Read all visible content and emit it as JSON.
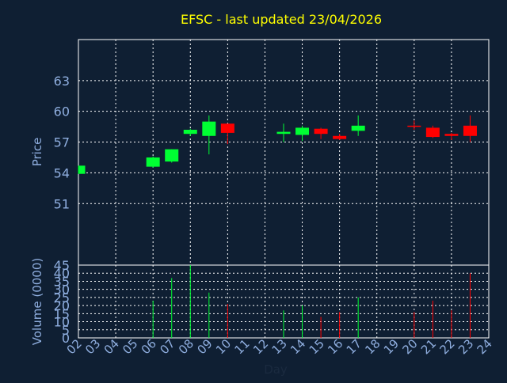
{
  "chart_data": {
    "type": "candlestick",
    "title": "EFSC - last updated 23/04/2026",
    "ylabel": "Price",
    "volume_label": "Volume (0000)",
    "xlabel": "Day",
    "ylim": [
      45,
      67
    ],
    "y_ticks": [
      45,
      51,
      54,
      57,
      60,
      63
    ],
    "volume_ylim": [
      0,
      45
    ],
    "volume_ticks": [
      0,
      5,
      10,
      15,
      20,
      25,
      30,
      35,
      40
    ],
    "x_ticks": [
      "02",
      "03",
      "04",
      "05",
      "06",
      "07",
      "08",
      "09",
      "10",
      "11",
      "12",
      "13",
      "14",
      "15",
      "16",
      "17",
      "18",
      "19",
      "20",
      "21",
      "22",
      "23",
      "24"
    ],
    "grid": true,
    "colors": {
      "background": "#0f1f33",
      "up": "#00ff33",
      "down": "#ff0000",
      "title": "#ffff00",
      "axis_text": "#8faedf",
      "grid": "#ffffff"
    },
    "candles": [
      {
        "day": "02",
        "open": 53.9,
        "close": 54.7,
        "high": 54.7,
        "low": 53.9,
        "volume": 0
      },
      {
        "day": "06",
        "open": 54.6,
        "close": 55.5,
        "high": 55.6,
        "low": 54.5,
        "volume": 23
      },
      {
        "day": "07",
        "open": 55.1,
        "close": 56.3,
        "high": 56.3,
        "low": 55.0,
        "volume": 37
      },
      {
        "day": "08",
        "open": 57.8,
        "close": 58.2,
        "high": 58.3,
        "low": 57.6,
        "volume": 45
      },
      {
        "day": "09",
        "open": 57.6,
        "close": 59.0,
        "high": 59.6,
        "low": 55.8,
        "volume": 28
      },
      {
        "day": "10",
        "open": 58.8,
        "close": 57.9,
        "high": 58.8,
        "low": 56.8,
        "volume": 21
      },
      {
        "day": "13",
        "open": 57.8,
        "close": 58.0,
        "high": 58.8,
        "low": 57.0,
        "volume": 17
      },
      {
        "day": "14",
        "open": 57.7,
        "close": 58.4,
        "high": 58.6,
        "low": 57.1,
        "volume": 20
      },
      {
        "day": "15",
        "open": 58.3,
        "close": 57.8,
        "high": 58.4,
        "low": 57.3,
        "volume": 13
      },
      {
        "day": "16",
        "open": 57.6,
        "close": 57.3,
        "high": 57.8,
        "low": 57.2,
        "volume": 16
      },
      {
        "day": "17",
        "open": 58.1,
        "close": 58.6,
        "high": 59.6,
        "low": 57.6,
        "volume": 25
      },
      {
        "day": "20",
        "open": 58.6,
        "close": 58.5,
        "high": 59.1,
        "low": 58.2,
        "volume": 16
      },
      {
        "day": "21",
        "open": 58.4,
        "close": 57.5,
        "high": 58.6,
        "low": 57.4,
        "volume": 23
      },
      {
        "day": "22",
        "open": 57.8,
        "close": 57.6,
        "high": 57.9,
        "low": 57.2,
        "volume": 17
      },
      {
        "day": "23",
        "open": 58.6,
        "close": 57.6,
        "high": 59.6,
        "low": 57.0,
        "volume": 40
      }
    ]
  }
}
